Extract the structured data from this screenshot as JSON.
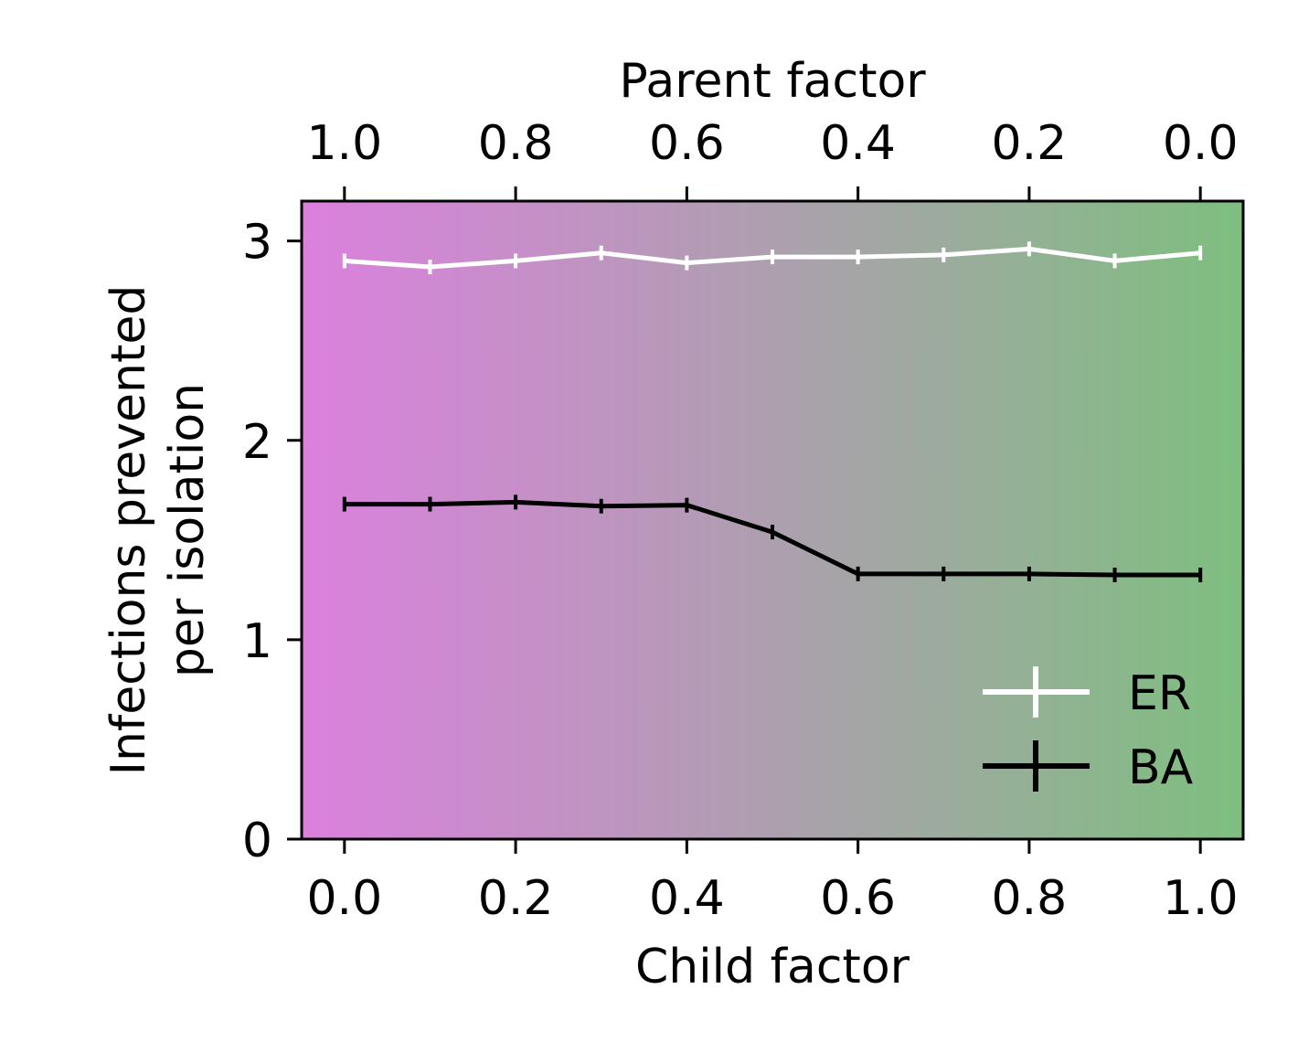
{
  "chart_data": {
    "type": "line",
    "xlabel": "Child factor",
    "x2label": "Parent factor",
    "ylabel_line1": "Infections prevented",
    "ylabel_line2": "per isolation",
    "xlim": [
      -0.05,
      1.05
    ],
    "ylim": [
      0,
      3.2
    ],
    "x_ticks": [
      0.0,
      0.2,
      0.4,
      0.6,
      0.8,
      1.0
    ],
    "x_tick_labels": [
      "0.0",
      "0.2",
      "0.4",
      "0.6",
      "0.8",
      "1.0"
    ],
    "x2_tick_labels": [
      "1.0",
      "0.8",
      "0.6",
      "0.4",
      "0.2",
      "0.0"
    ],
    "y_ticks": [
      0,
      1,
      2,
      3
    ],
    "y_tick_labels": [
      "0",
      "1",
      "2",
      "3"
    ],
    "x": [
      0.0,
      0.1,
      0.2,
      0.3,
      0.4,
      0.5,
      0.6,
      0.7,
      0.8,
      0.9,
      1.0
    ],
    "series": [
      {
        "name": "ER",
        "color": "#ffffff",
        "values": [
          2.9,
          2.87,
          2.9,
          2.94,
          2.89,
          2.92,
          2.92,
          2.93,
          2.96,
          2.9,
          2.94
        ]
      },
      {
        "name": "BA",
        "color": "#000000",
        "values": [
          1.68,
          1.68,
          1.69,
          1.67,
          1.675,
          1.54,
          1.33,
          1.33,
          1.33,
          1.325,
          1.325
        ]
      }
    ],
    "background_gradient": [
      "#dc80de",
      "#7ebf7f"
    ],
    "grid": false,
    "legend_position": "lower-right"
  }
}
